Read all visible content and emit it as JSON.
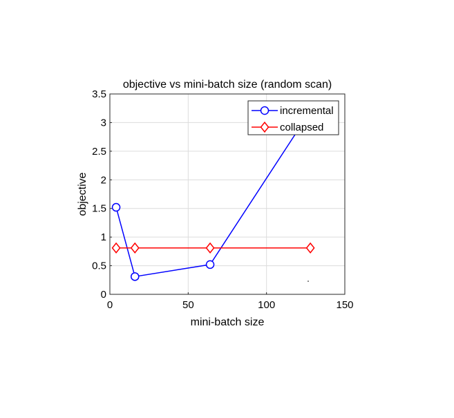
{
  "chart_data": {
    "type": "line",
    "title": "objective vs mini-batch size (random scan)",
    "xlabel": "mini-batch size",
    "ylabel": "objective",
    "xlim": [
      0,
      150
    ],
    "ylim": [
      0,
      3.5
    ],
    "xticks": [
      "0",
      "50",
      "100",
      "150"
    ],
    "yticks": [
      "0",
      "0.5",
      "1",
      "1.5",
      "2",
      "2.5",
      "3",
      "3.5"
    ],
    "grid": true,
    "legend_position": "top-right",
    "series": [
      {
        "name": "incremental",
        "color": "#0000ff",
        "marker": "circle",
        "x": [
          4,
          16,
          64,
          128
        ],
        "y": [
          1.52,
          0.31,
          0.52,
          3.2
        ]
      },
      {
        "name": "collapsed",
        "color": "#ff0000",
        "marker": "diamond",
        "x": [
          4,
          16,
          64,
          128
        ],
        "y": [
          0.81,
          0.81,
          0.81,
          0.81
        ]
      }
    ]
  }
}
